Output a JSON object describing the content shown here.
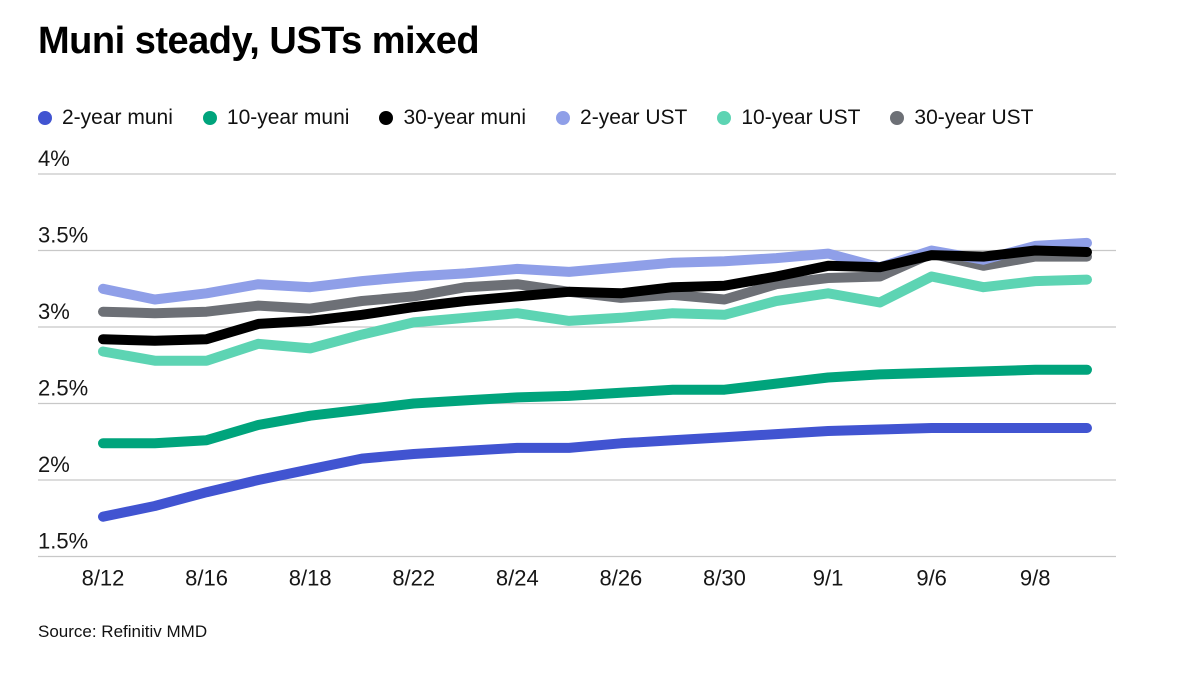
{
  "title": "Muni steady, USTs mixed",
  "source": "Source: Refinitiv MMD",
  "chart_data": {
    "type": "line",
    "title": "Muni steady, USTs mixed",
    "xlabel": "",
    "ylabel": "",
    "unit": "%",
    "ylim": [
      1.5,
      4.0
    ],
    "grid": "horizontal",
    "legend_position": "top",
    "gridline_color": "#c8c8c8",
    "y_ticks": [
      4.0,
      3.5,
      3.0,
      2.5,
      2.0,
      1.5
    ],
    "y_tick_labels": [
      "4%",
      "3.5%",
      "3%",
      "2.5%",
      "2%",
      "1.5%"
    ],
    "x": [
      "8/12",
      "8/15",
      "8/16",
      "8/17",
      "8/18",
      "8/19",
      "8/22",
      "8/23",
      "8/24",
      "8/25",
      "8/26",
      "8/29",
      "8/30",
      "8/31",
      "9/1",
      "9/2",
      "9/6",
      "9/7",
      "9/8",
      "9/9"
    ],
    "x_tick_indices": [
      0,
      2,
      4,
      6,
      8,
      10,
      12,
      14,
      16,
      18
    ],
    "x_tick_labels": [
      "8/12",
      "8/16",
      "8/18",
      "8/22",
      "8/24",
      "8/26",
      "8/30",
      "9/1",
      "9/6",
      "9/8"
    ],
    "series": [
      {
        "name": "2-year muni",
        "color": "#4154d1",
        "values": [
          1.76,
          1.83,
          1.92,
          2.0,
          2.07,
          2.14,
          2.17,
          2.19,
          2.21,
          2.21,
          2.24,
          2.26,
          2.28,
          2.3,
          2.32,
          2.33,
          2.34,
          2.34,
          2.34,
          2.34
        ]
      },
      {
        "name": "10-year muni",
        "color": "#00a47c",
        "values": [
          2.24,
          2.24,
          2.26,
          2.36,
          2.42,
          2.46,
          2.5,
          2.52,
          2.54,
          2.55,
          2.57,
          2.59,
          2.59,
          2.63,
          2.67,
          2.69,
          2.7,
          2.71,
          2.72,
          2.72
        ]
      },
      {
        "name": "30-year muni",
        "color": "#000000",
        "values": [
          2.92,
          2.91,
          2.92,
          3.02,
          3.04,
          3.08,
          3.13,
          3.17,
          3.2,
          3.23,
          3.22,
          3.26,
          3.27,
          3.33,
          3.4,
          3.39,
          3.47,
          3.46,
          3.5,
          3.49
        ]
      },
      {
        "name": "2-year UST",
        "color": "#8f9fe8",
        "values": [
          3.25,
          3.18,
          3.22,
          3.28,
          3.26,
          3.3,
          3.33,
          3.35,
          3.38,
          3.36,
          3.39,
          3.42,
          3.43,
          3.45,
          3.48,
          3.39,
          3.5,
          3.44,
          3.53,
          3.55
        ]
      },
      {
        "name": "10-year UST",
        "color": "#5dd4b3",
        "values": [
          2.84,
          2.78,
          2.78,
          2.89,
          2.86,
          2.95,
          3.03,
          3.06,
          3.09,
          3.04,
          3.06,
          3.09,
          3.08,
          3.17,
          3.22,
          3.16,
          3.33,
          3.26,
          3.3,
          3.31
        ]
      },
      {
        "name": "30-year UST",
        "color": "#6d7076",
        "values": [
          3.1,
          3.09,
          3.1,
          3.14,
          3.12,
          3.17,
          3.2,
          3.26,
          3.28,
          3.23,
          3.19,
          3.21,
          3.18,
          3.28,
          3.32,
          3.33,
          3.48,
          3.4,
          3.46,
          3.46
        ]
      }
    ]
  }
}
